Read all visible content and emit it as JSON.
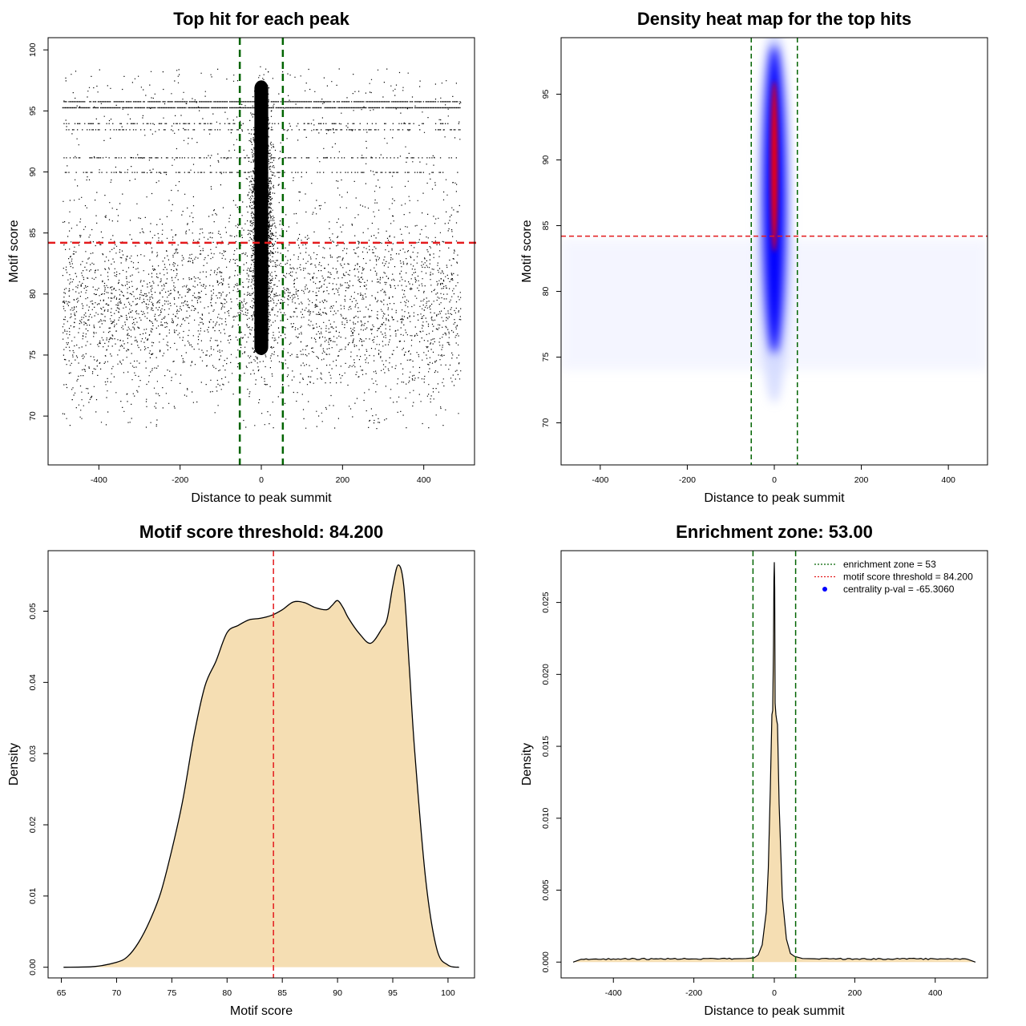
{
  "colors": {
    "green_line": "#006400",
    "red_line": "#e41a1c",
    "fill": "#f5deb3",
    "blue": "#0000ff",
    "red_core": "#ff0000"
  },
  "chart_data": [
    {
      "id": "scatter",
      "type": "scatter",
      "title": "Top hit for each peak",
      "xlabel": "Distance to peak summit",
      "ylabel": "Motif score",
      "xlim": [
        -525,
        525
      ],
      "ylim": [
        66,
        101
      ],
      "xticks": [
        -400,
        -200,
        0,
        200,
        400
      ],
      "yticks": [
        70,
        75,
        80,
        85,
        90,
        95,
        100
      ],
      "vlines": [
        -53,
        53
      ],
      "hline": 84.2,
      "background": {
        "x_range": [
          -490,
          490
        ],
        "score_center": 79,
        "score_sd": 3.5,
        "score_range": [
          69,
          98.5
        ]
      },
      "central_cluster": {
        "x_sd": 12,
        "score_range": [
          73,
          99
        ],
        "score_center": 86
      },
      "horizontal_bands": [
        95.3,
        95.8,
        94.0,
        93.5,
        91.2,
        90.0
      ]
    },
    {
      "id": "heatmap",
      "type": "heatmap",
      "title": "Density heat map for the top hits",
      "xlabel": "Distance to peak summit",
      "ylabel": "Motif score",
      "xlim": [
        -490,
        490
      ],
      "ylim": [
        66.8,
        99.3
      ],
      "xticks": [
        -400,
        -200,
        0,
        200,
        400
      ],
      "yticks": [
        70,
        75,
        80,
        85,
        90,
        95
      ],
      "vlines": [
        -53,
        53
      ],
      "hline": 84.2,
      "hotspot": {
        "x": 0,
        "score_range": [
          72,
          98
        ],
        "peak_score": 89
      }
    },
    {
      "id": "score_density",
      "type": "area",
      "title": "Motif score threshold: 84.200",
      "xlabel": "Motif score",
      "ylabel": "Density",
      "xlim": [
        63.8,
        102.4
      ],
      "ylim": [
        -0.0015,
        0.0585
      ],
      "xticks": [
        65,
        70,
        75,
        80,
        85,
        90,
        95,
        100
      ],
      "yticks": [
        0.0,
        0.01,
        0.02,
        0.03,
        0.04,
        0.05
      ],
      "ytick_labels": [
        "0.00",
        "0.01",
        "0.02",
        "0.03",
        "0.04",
        "0.05"
      ],
      "vline": 84.2,
      "x": [
        65.2,
        68,
        70,
        71,
        72,
        73,
        74,
        75,
        76,
        77,
        78,
        79,
        80,
        81,
        82,
        83,
        84,
        85,
        86,
        87,
        88,
        89,
        89.5,
        90,
        90.5,
        91,
        92,
        93,
        94,
        94.5,
        95,
        95.5,
        96,
        96.5,
        97,
        98,
        99,
        100,
        101
      ],
      "y": [
        0,
        0.0001,
        0.0007,
        0.0015,
        0.0035,
        0.0065,
        0.0105,
        0.0165,
        0.0235,
        0.0325,
        0.0395,
        0.043,
        0.047,
        0.048,
        0.0488,
        0.049,
        0.0494,
        0.0502,
        0.0513,
        0.0512,
        0.0505,
        0.0502,
        0.0508,
        0.0515,
        0.0505,
        0.049,
        0.0468,
        0.0455,
        0.0475,
        0.049,
        0.0535,
        0.0565,
        0.0535,
        0.042,
        0.03,
        0.012,
        0.0025,
        0.0003,
        0
      ]
    },
    {
      "id": "enrichment",
      "type": "area",
      "title": "Enrichment zone: 53.00",
      "xlabel": "Distance to peak summit",
      "ylabel": "Density",
      "xlim": [
        -530,
        530
      ],
      "ylim": [
        -0.0011,
        0.0286
      ],
      "xticks": [
        -400,
        -200,
        0,
        200,
        400
      ],
      "yticks": [
        0.0,
        0.005,
        0.01,
        0.015,
        0.02,
        0.025
      ],
      "ytick_labels": [
        "0.000",
        "0.005",
        "0.010",
        "0.015",
        "0.020",
        "0.025"
      ],
      "vlines": [
        -53,
        53
      ],
      "x": [
        -500,
        -480,
        -400,
        -300,
        -200,
        -100,
        -70,
        -50,
        -40,
        -30,
        -20,
        -15,
        -10,
        -6,
        -4,
        -2,
        -1,
        0,
        1,
        2,
        4,
        6,
        8,
        12,
        20,
        30,
        40,
        50,
        70,
        100,
        200,
        300,
        400,
        480,
        500
      ],
      "y": [
        0,
        0.0002,
        0.00022,
        0.00022,
        0.00022,
        0.00023,
        0.00025,
        0.0003,
        0.0005,
        0.0012,
        0.0035,
        0.0065,
        0.012,
        0.0172,
        0.0175,
        0.022,
        0.0265,
        0.0278,
        0.026,
        0.018,
        0.0172,
        0.0168,
        0.0165,
        0.011,
        0.0045,
        0.0016,
        0.0006,
        0.0004,
        0.00025,
        0.00023,
        0.00022,
        0.00022,
        0.00022,
        0.0002,
        0
      ],
      "legend": {
        "position": "top-right",
        "entries": [
          {
            "label": "enrichment zone = 53",
            "style": "dotted",
            "color": "#006400"
          },
          {
            "label": "motif score threshold = 84.200",
            "style": "dotted",
            "color": "#e41a1c"
          },
          {
            "label": "centrality p-val = -65.3060",
            "style": "point",
            "color": "#0000ff"
          }
        ]
      }
    }
  ]
}
